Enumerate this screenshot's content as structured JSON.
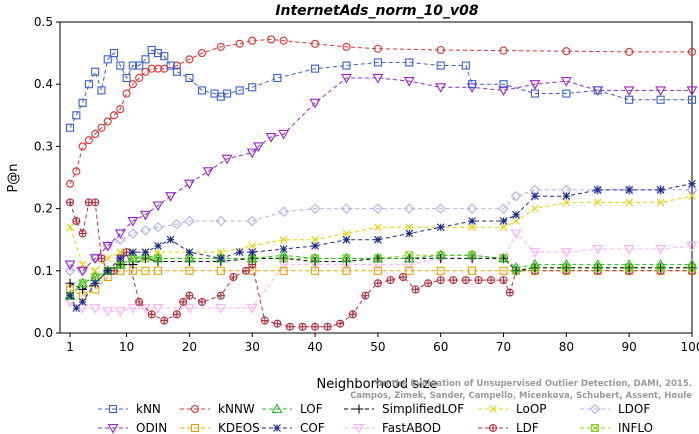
{
  "chart_data": {
    "type": "line",
    "title": "InternetAds_norm_10_v08",
    "xlabel": "Neighborhood size",
    "ylabel": "P@n",
    "xlim": [
      1,
      100
    ],
    "ylim": [
      0,
      0.5
    ],
    "x_ticks": [
      1,
      10,
      20,
      30,
      40,
      50,
      60,
      70,
      80,
      90,
      100
    ],
    "y_ticks": [
      0.0,
      0.1,
      0.2,
      0.3,
      0.4,
      0.5
    ],
    "x_tick_labels": [
      "1",
      "10",
      "20",
      "30",
      "40",
      "50",
      "60",
      "70",
      "80",
      "90",
      "100"
    ],
    "y_tick_labels": [
      "0.0",
      "0.1",
      "0.2",
      "0.3",
      "0.4",
      "0.5"
    ],
    "grid": false,
    "legend_position": "bottom",
    "credit_lines": [
      "Campos, Zimek, Sander, Campello, Micenkova, Schubert, Assent, Houle",
      "On the Evaluation of Unsupervised Outlier Detection, DAMI, 2015."
    ],
    "series": [
      {
        "name": "kNN",
        "color": "#3a5fcd",
        "marker": "square",
        "x": [
          1,
          2,
          3,
          4,
          5,
          6,
          7,
          8,
          9,
          10,
          11,
          12,
          13,
          14,
          15,
          16,
          17,
          18,
          20,
          22,
          24,
          25,
          26,
          28,
          30,
          34,
          40,
          45,
          50,
          55,
          60,
          64,
          65,
          70,
          75,
          80,
          85,
          90,
          95,
          100
        ],
        "y": [
          0.33,
          0.35,
          0.37,
          0.4,
          0.42,
          0.39,
          0.44,
          0.45,
          0.43,
          0.41,
          0.43,
          0.43,
          0.44,
          0.455,
          0.45,
          0.445,
          0.43,
          0.42,
          0.41,
          0.39,
          0.385,
          0.38,
          0.385,
          0.39,
          0.395,
          0.41,
          0.425,
          0.43,
          0.435,
          0.435,
          0.43,
          0.43,
          0.4,
          0.4,
          0.385,
          0.385,
          0.39,
          0.375,
          0.375,
          0.375
        ]
      },
      {
        "name": "kNNW",
        "color": "#e03030",
        "marker": "circle",
        "x": [
          1,
          2,
          3,
          4,
          5,
          6,
          7,
          8,
          9,
          10,
          11,
          12,
          13,
          14,
          15,
          16,
          18,
          20,
          22,
          25,
          28,
          30,
          33,
          35,
          40,
          45,
          50,
          60,
          70,
          80,
          90,
          100
        ],
        "y": [
          0.24,
          0.26,
          0.3,
          0.31,
          0.32,
          0.33,
          0.34,
          0.35,
          0.36,
          0.385,
          0.4,
          0.41,
          0.42,
          0.425,
          0.425,
          0.425,
          0.43,
          0.44,
          0.45,
          0.46,
          0.465,
          0.47,
          0.472,
          0.47,
          0.465,
          0.46,
          0.457,
          0.455,
          0.454,
          0.453,
          0.452,
          0.452
        ]
      },
      {
        "name": "LOF",
        "color": "#22bb22",
        "marker": "triangle-up",
        "x": [
          1,
          3,
          5,
          7,
          9,
          11,
          13,
          15,
          20,
          25,
          30,
          35,
          40,
          45,
          50,
          55,
          60,
          65,
          70,
          72,
          75,
          80,
          85,
          90,
          95,
          100
        ],
        "y": [
          0.06,
          0.08,
          0.09,
          0.1,
          0.11,
          0.12,
          0.125,
          0.12,
          0.12,
          0.12,
          0.12,
          0.125,
          0.12,
          0.12,
          0.12,
          0.12,
          0.125,
          0.125,
          0.12,
          0.105,
          0.11,
          0.11,
          0.11,
          0.11,
          0.11,
          0.11
        ]
      },
      {
        "name": "SimplifiedLOF",
        "color": "#000000",
        "marker": "plus",
        "x": [
          1,
          3,
          5,
          7,
          9,
          11,
          13,
          15,
          20,
          25,
          30,
          35,
          40,
          45,
          50,
          55,
          60,
          65,
          70,
          72,
          75,
          80,
          85,
          90,
          95,
          100
        ],
        "y": [
          0.08,
          0.07,
          0.08,
          0.1,
          0.11,
          0.11,
          0.12,
          0.115,
          0.115,
          0.115,
          0.12,
          0.12,
          0.115,
          0.115,
          0.12,
          0.12,
          0.12,
          0.12,
          0.12,
          0.1,
          0.105,
          0.105,
          0.105,
          0.105,
          0.105,
          0.105
        ]
      },
      {
        "name": "LoOP",
        "color": "#e8d000",
        "marker": "x",
        "x": [
          1,
          3,
          5,
          7,
          9,
          11,
          13,
          15,
          20,
          25,
          30,
          35,
          40,
          45,
          50,
          55,
          60,
          65,
          70,
          72,
          75,
          80,
          85,
          90,
          95,
          100
        ],
        "y": [
          0.17,
          0.11,
          0.1,
          0.12,
          0.13,
          0.13,
          0.13,
          0.13,
          0.13,
          0.13,
          0.14,
          0.15,
          0.15,
          0.16,
          0.17,
          0.17,
          0.17,
          0.17,
          0.17,
          0.18,
          0.2,
          0.21,
          0.21,
          0.21,
          0.21,
          0.22
        ]
      },
      {
        "name": "LDOF",
        "color": "#b0b0ee",
        "marker": "diamond",
        "x": [
          1,
          3,
          5,
          7,
          9,
          11,
          13,
          15,
          18,
          20,
          25,
          30,
          35,
          40,
          45,
          50,
          55,
          60,
          65,
          70,
          72,
          75,
          80,
          85,
          90,
          95,
          100
        ],
        "y": [
          0.1,
          0.1,
          0.12,
          0.14,
          0.15,
          0.16,
          0.165,
          0.17,
          0.175,
          0.18,
          0.18,
          0.18,
          0.195,
          0.2,
          0.2,
          0.2,
          0.2,
          0.2,
          0.2,
          0.2,
          0.22,
          0.23,
          0.23,
          0.23,
          0.23,
          0.23,
          0.23
        ]
      },
      {
        "name": "ODIN",
        "color": "#9a22cc",
        "marker": "triangle-down",
        "x": [
          1,
          3,
          5,
          7,
          9,
          11,
          13,
          15,
          17,
          20,
          23,
          26,
          30,
          31,
          33,
          35,
          40,
          45,
          50,
          55,
          60,
          65,
          70,
          75,
          80,
          85,
          90,
          95,
          100
        ],
        "y": [
          0.11,
          0.1,
          0.12,
          0.14,
          0.16,
          0.18,
          0.19,
          0.205,
          0.22,
          0.24,
          0.26,
          0.28,
          0.29,
          0.3,
          0.315,
          0.32,
          0.37,
          0.41,
          0.41,
          0.405,
          0.395,
          0.395,
          0.39,
          0.4,
          0.405,
          0.39,
          0.39,
          0.39,
          0.39
        ]
      },
      {
        "name": "KDEOS",
        "color": "#f0a000",
        "marker": "square",
        "x": [
          1,
          3,
          5,
          7,
          9,
          11,
          13,
          15,
          20,
          25,
          30,
          35,
          40,
          45,
          50,
          55,
          60,
          65,
          70,
          75,
          80,
          85,
          90,
          95,
          100
        ],
        "y": [
          0.07,
          0.06,
          0.07,
          0.09,
          0.1,
          0.1,
          0.1,
          0.1,
          0.1,
          0.1,
          0.1,
          0.1,
          0.1,
          0.1,
          0.1,
          0.1,
          0.1,
          0.1,
          0.1,
          0.1,
          0.1,
          0.1,
          0.1,
          0.1,
          0.1
        ]
      },
      {
        "name": "COF",
        "color": "#1a2a8a",
        "marker": "star",
        "x": [
          1,
          2,
          3,
          5,
          7,
          9,
          11,
          13,
          15,
          17,
          20,
          25,
          28,
          30,
          35,
          40,
          45,
          50,
          55,
          60,
          65,
          70,
          72,
          75,
          80,
          85,
          90,
          95,
          100
        ],
        "y": [
          0.06,
          0.04,
          0.05,
          0.08,
          0.1,
          0.12,
          0.13,
          0.13,
          0.14,
          0.15,
          0.13,
          0.12,
          0.13,
          0.13,
          0.135,
          0.14,
          0.15,
          0.15,
          0.16,
          0.17,
          0.18,
          0.18,
          0.19,
          0.22,
          0.22,
          0.23,
          0.23,
          0.23,
          0.24
        ]
      },
      {
        "name": "FastABOD",
        "color": "#ffaaff",
        "marker": "triangle-down",
        "x": [
          1,
          3,
          5,
          7,
          9,
          11,
          13,
          15,
          20,
          25,
          30,
          35,
          40,
          45,
          50,
          55,
          60,
          65,
          70,
          72,
          75,
          80,
          85,
          90,
          95,
          100
        ],
        "y": [
          0.05,
          0.04,
          0.04,
          0.035,
          0.035,
          0.04,
          0.04,
          0.04,
          0.04,
          0.04,
          0.04,
          0.11,
          0.11,
          0.11,
          0.11,
          0.11,
          0.12,
          0.12,
          0.12,
          0.16,
          0.13,
          0.13,
          0.135,
          0.135,
          0.135,
          0.14
        ]
      },
      {
        "name": "LDF",
        "color": "#b03040",
        "marker": "circle-plus",
        "x": [
          1,
          2,
          3,
          4,
          5,
          6,
          7,
          8,
          9,
          10,
          12,
          14,
          16,
          18,
          19,
          20,
          22,
          25,
          27,
          29,
          30,
          32,
          34,
          36,
          38,
          40,
          42,
          44,
          46,
          48,
          50,
          52,
          54,
          56,
          58,
          60,
          62,
          64,
          66,
          68,
          70,
          71,
          72,
          75,
          80,
          85,
          90,
          95,
          100
        ],
        "y": [
          0.21,
          0.18,
          0.16,
          0.21,
          0.21,
          0.12,
          0.1,
          0.1,
          0.12,
          0.13,
          0.05,
          0.03,
          0.02,
          0.03,
          0.05,
          0.06,
          0.05,
          0.06,
          0.09,
          0.1,
          0.11,
          0.02,
          0.015,
          0.01,
          0.01,
          0.01,
          0.01,
          0.015,
          0.03,
          0.06,
          0.08,
          0.085,
          0.09,
          0.07,
          0.08,
          0.085,
          0.085,
          0.085,
          0.085,
          0.085,
          0.085,
          0.065,
          0.1,
          0.1,
          0.1,
          0.1,
          0.1,
          0.1,
          0.1
        ]
      },
      {
        "name": "INFLO",
        "color": "#90d020",
        "marker": "square-x",
        "x": [
          1,
          3,
          5,
          7,
          9,
          11,
          13,
          15,
          20,
          25,
          30,
          35,
          40,
          45,
          50,
          55,
          60,
          65,
          70,
          72,
          75,
          80,
          85,
          90,
          95,
          100
        ],
        "y": [
          0.06,
          0.08,
          0.09,
          0.1,
          0.11,
          0.12,
          0.12,
          0.12,
          0.12,
          0.12,
          0.12,
          0.12,
          0.12,
          0.12,
          0.12,
          0.125,
          0.125,
          0.125,
          0.12,
          0.1,
          0.105,
          0.105,
          0.105,
          0.105,
          0.105,
          0.105
        ]
      }
    ]
  }
}
